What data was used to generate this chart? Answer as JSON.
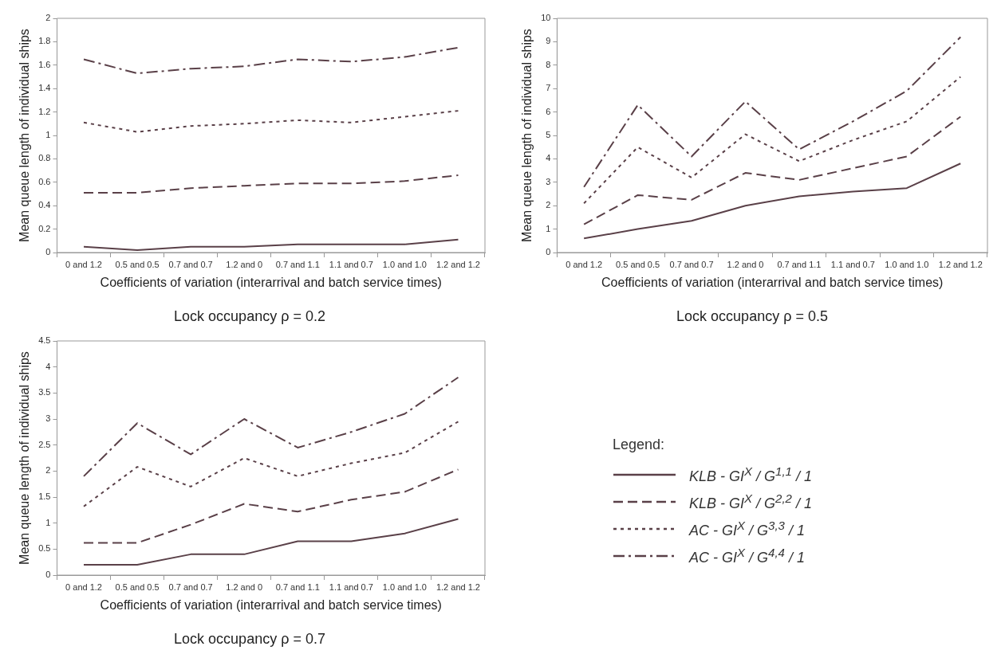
{
  "chart_data": [
    {
      "type": "line",
      "title": "Lock occupancy ρ = 0.2",
      "xlabel": "Coefficients of variation (interarrival and batch service times)",
      "ylabel": "Mean queue length of individual ships",
      "categories": [
        "0 and 1.2",
        "0.5 and 0.5",
        "0.7 and 0.7",
        "1.2 and 0",
        "0.7 and 1.1",
        "1.1 and 0.7",
        "1.0 and 1.0",
        "1.2 and 1.2"
      ],
      "ylim": [
        0,
        2
      ],
      "yticks": [
        0,
        0.2,
        0.4,
        0.6,
        0.8,
        1,
        1.2,
        1.4,
        1.6,
        1.8,
        2
      ],
      "legend": false,
      "series": [
        {
          "color": "#5a4048",
          "line_style": "solid",
          "values": [
            0.05,
            0.02,
            0.05,
            0.05,
            0.07,
            0.07,
            0.07,
            0.11
          ]
        },
        {
          "color": "#5a4048",
          "line_style": "dashed",
          "values": [
            0.51,
            0.51,
            0.55,
            0.57,
            0.59,
            0.59,
            0.61,
            0.66
          ]
        },
        {
          "color": "#5a4048",
          "line_style": "dotted",
          "values": [
            1.11,
            1.03,
            1.08,
            1.1,
            1.13,
            1.11,
            1.16,
            1.21
          ]
        },
        {
          "color": "#5a4048",
          "line_style": "dashdot",
          "values": [
            1.65,
            1.53,
            1.57,
            1.59,
            1.65,
            1.63,
            1.67,
            1.75
          ]
        }
      ]
    },
    {
      "type": "line",
      "title": "Lock occupancy ρ = 0.5",
      "xlabel": "Coefficients of variation (interarrival and batch service times)",
      "ylabel": "Mean queue length of individual ships",
      "categories": [
        "0 and 1.2",
        "0.5 and 0.5",
        "0.7 and 0.7",
        "1.2 and 0",
        "0.7 and 1.1",
        "1.1 and 0.7",
        "1.0 and 1.0",
        "1.2 and 1.2"
      ],
      "ylim": [
        0,
        10
      ],
      "yticks": [
        0,
        1,
        2,
        3,
        4,
        5,
        6,
        7,
        8,
        9,
        10
      ],
      "legend": false,
      "series": [
        {
          "color": "#5a4048",
          "line_style": "solid",
          "values": [
            0.6,
            1.0,
            1.35,
            2.0,
            2.4,
            2.6,
            2.75,
            3.8
          ]
        },
        {
          "color": "#5a4048",
          "line_style": "dashed",
          "values": [
            1.2,
            2.45,
            2.25,
            3.4,
            3.1,
            3.6,
            4.1,
            5.8
          ]
        },
        {
          "color": "#5a4048",
          "line_style": "dotted",
          "values": [
            2.1,
            4.5,
            3.2,
            5.05,
            3.9,
            4.8,
            5.6,
            7.5
          ]
        },
        {
          "color": "#5a4048",
          "line_style": "dashdot",
          "values": [
            2.8,
            6.3,
            4.1,
            6.45,
            4.4,
            5.6,
            6.9,
            9.2
          ]
        }
      ]
    },
    {
      "type": "line",
      "title": "Lock occupancy ρ = 0.7",
      "xlabel": "Coefficients of variation (interarrival and batch service times)",
      "ylabel": "Mean queue length of individual ships",
      "categories": [
        "0 and 1.2",
        "0.5 and 0.5",
        "0.7 and 0.7",
        "1.2 and 0",
        "0.7 and 1.1",
        "1.1 and 0.7",
        "1.0 and 1.0",
        "1.2 and 1.2"
      ],
      "ylim": [
        0,
        4.5
      ],
      "yticks": [
        0,
        0.5,
        1,
        1.5,
        2,
        2.5,
        3,
        3.5,
        4,
        4.5
      ],
      "legend": "right",
      "legend_title": "Legend:",
      "series": [
        {
          "name": "KLB - GI$^{X}$ / G$^{1,1}$ / 1",
          "color": "#5a4048",
          "line_style": "solid",
          "values": [
            0.2,
            0.2,
            0.4,
            0.4,
            0.65,
            0.65,
            0.8,
            1.08
          ]
        },
        {
          "name": "KLB - GI$^{X}$ / G$^{2,2}$ / 1",
          "color": "#5a4048",
          "line_style": "dashed",
          "values": [
            0.62,
            0.62,
            0.97,
            1.37,
            1.22,
            1.45,
            1.6,
            2.03
          ]
        },
        {
          "name": "AC - GI$^{X}$ / G$^{3,3}$ / 1",
          "color": "#5a4048",
          "line_style": "dotted",
          "values": [
            1.32,
            2.08,
            1.7,
            2.25,
            1.9,
            2.15,
            2.35,
            2.95
          ]
        },
        {
          "name": "AC - GI$^{X}$ / G$^{4,4}$ / 1",
          "color": "#5a4048",
          "line_style": "dashdot",
          "values": [
            1.9,
            2.92,
            2.32,
            3.0,
            2.45,
            2.75,
            3.1,
            3.8
          ]
        }
      ]
    }
  ]
}
